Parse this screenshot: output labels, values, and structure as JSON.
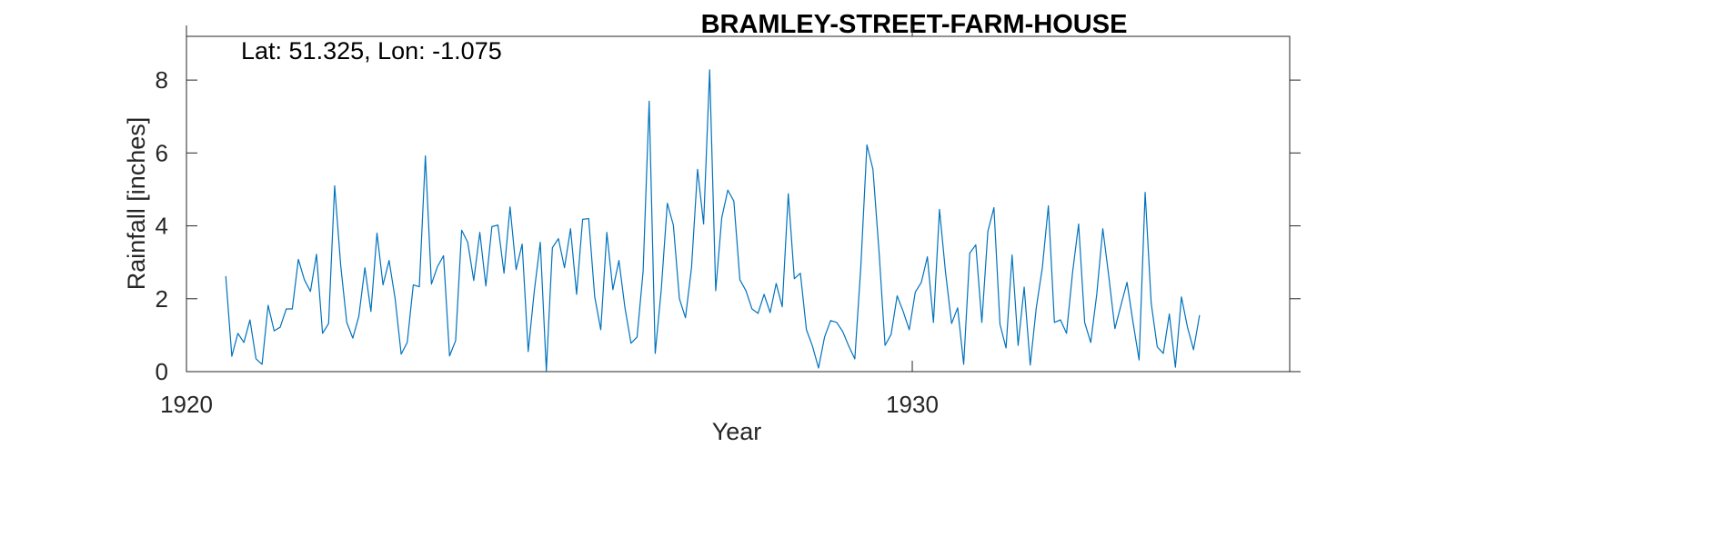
{
  "chart_data": {
    "type": "line",
    "title": "BRAMLEY-STREET-FARM-HOUSE",
    "annotation": "Lat: 51.325, Lon: -1.075",
    "xlabel": "Year",
    "ylabel": "Rainfall [inches]",
    "xlim": [
      1920,
      1935.2
    ],
    "ylim": [
      0,
      9.2
    ],
    "x_ticks": [
      1920,
      1930
    ],
    "x_tick_labels": [
      "1920",
      "1930"
    ],
    "y_ticks": [
      0,
      2,
      4,
      6,
      8
    ],
    "y_tick_labels": [
      "0",
      "2",
      "4",
      "6",
      "8"
    ],
    "grid": false,
    "line_color": "#0072BD",
    "x_start": 1920.5417,
    "x_step_months": 1,
    "series": [
      {
        "values": [
          2.62,
          0.42,
          1.05,
          0.8,
          1.42,
          0.35,
          0.2,
          1.82,
          1.12,
          1.22,
          1.72,
          1.72,
          3.08,
          2.52,
          2.2,
          3.22,
          1.05,
          1.32,
          5.1,
          2.92,
          1.35,
          0.92,
          1.52,
          2.85,
          1.65,
          3.8,
          2.38,
          3.05,
          2.0,
          0.48,
          0.8,
          2.38,
          2.33,
          5.92,
          2.4,
          2.88,
          3.18,
          0.43,
          0.85,
          3.88,
          3.55,
          2.5,
          3.82,
          2.35,
          3.98,
          4.02,
          2.7,
          4.52,
          2.8,
          3.5,
          0.55,
          2.2,
          3.55,
          0.02,
          3.4,
          3.65,
          2.85,
          3.92,
          2.12,
          4.18,
          4.2,
          2.05,
          1.15,
          3.82,
          2.25,
          3.05,
          1.75,
          0.78,
          0.95,
          2.75,
          7.42,
          0.5,
          2.25,
          4.62,
          4.02,
          2.0,
          1.48,
          2.85,
          5.55,
          4.05,
          8.28,
          2.22,
          4.22,
          4.98,
          4.68,
          2.52,
          2.22,
          1.72,
          1.6,
          2.12,
          1.62,
          2.42,
          1.78,
          4.88,
          2.55,
          2.7,
          1.15,
          0.7,
          0.1,
          0.95,
          1.4,
          1.35,
          1.1,
          0.7,
          0.35,
          2.9,
          6.22,
          5.55,
          3.3,
          0.72,
          1.02,
          2.08,
          1.65,
          1.15,
          2.18,
          2.45,
          3.15,
          1.35,
          4.45,
          2.72,
          1.32,
          1.75,
          0.2,
          3.25,
          3.48,
          1.35,
          3.85,
          4.5,
          1.3,
          0.65,
          3.2,
          0.72,
          2.32,
          0.18,
          1.75,
          2.85,
          4.55,
          1.35,
          1.42,
          1.05,
          2.72,
          4.05,
          1.35,
          0.8,
          2.12,
          3.92,
          2.6,
          1.18,
          1.82,
          2.45,
          1.35,
          0.32,
          4.92,
          1.88,
          0.68,
          0.5,
          1.58,
          0.12,
          2.05,
          1.22,
          0.6,
          1.55
        ]
      }
    ]
  }
}
